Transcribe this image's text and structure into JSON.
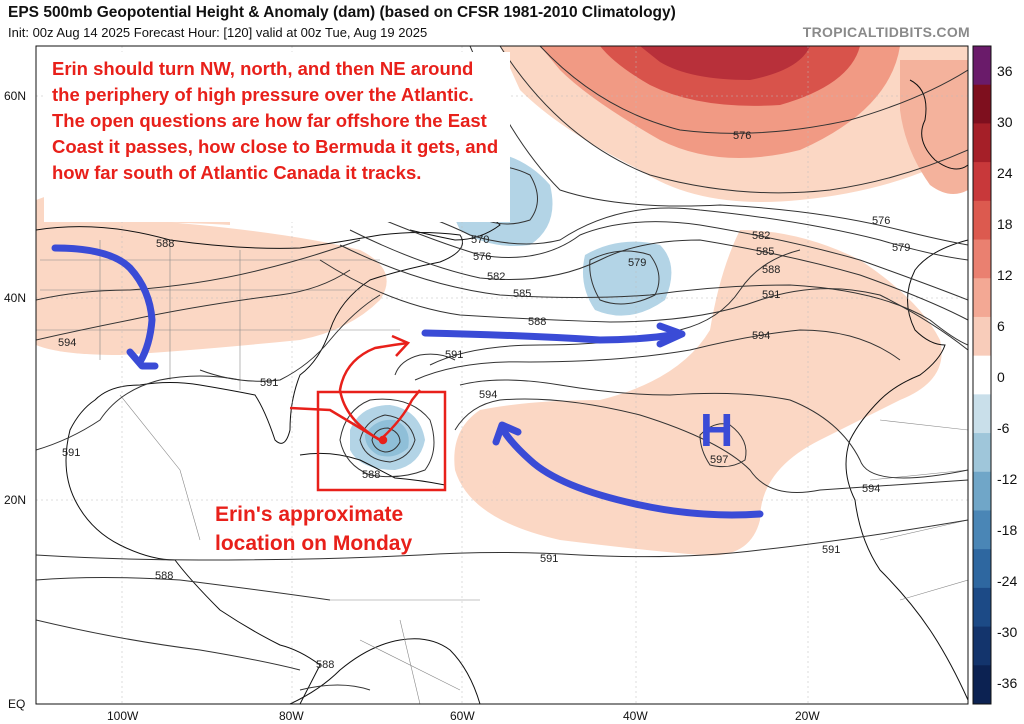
{
  "header": {
    "title": "EPS 500mb Geopotential Height & Anomaly (dam) (based on CFSR 1981-2010 Climatology)",
    "subtitle": "Init: 00z Aug 14 2025   Forecast Hour: [120]   valid at 00z Tue, Aug 19 2025",
    "brand": "TROPICALTIDBITS.COM"
  },
  "axes": {
    "lat_labels": [
      "60N",
      "40N",
      "20N",
      "EQ"
    ],
    "lon_labels": [
      "100W",
      "80W",
      "60W",
      "40W",
      "20W"
    ]
  },
  "contours": {
    "labels": [
      "576",
      "570",
      "576",
      "582",
      "585",
      "588",
      "591",
      "594",
      "597",
      "579",
      "582",
      "585",
      "588",
      "591",
      "594",
      "576",
      "579",
      "588",
      "591",
      "594",
      "591",
      "588",
      "588",
      "591",
      "591",
      "591",
      "594",
      "588",
      "594"
    ]
  },
  "annotations": {
    "forecast_text": "Erin should turn NW, north, and then NE around the periphery of high pressure over the Atlantic. The open questions are how far offshore the East Coast it passes, how close to Bermuda it gets, and how far south of Atlantic Canada it tracks.",
    "location_text": "Erin's approximate location on Monday",
    "high_label": "H"
  },
  "colorbar": {
    "ticks": [
      "36",
      "30",
      "24",
      "18",
      "12",
      "6",
      "0",
      "-6",
      "-12",
      "-18",
      "-24",
      "-30",
      "-36"
    ],
    "colors": [
      "#6a1b6a",
      "#7e0f1e",
      "#a51f28",
      "#c8383a",
      "#dc5a4f",
      "#ea8070",
      "#f3a894",
      "#f8ccba",
      "#ffffff",
      "#c9dfea",
      "#9fc6da",
      "#70a6c8",
      "#4a86b6",
      "#2e67a0",
      "#1c4a86",
      "#13346c",
      "#0c2252"
    ]
  },
  "colors": {
    "annotation_red": "#e8201a",
    "arrow_blue": "#3a4bd6",
    "positive_anomaly": "#fbd7c4",
    "negative_anomaly": "#b3d4e6"
  }
}
